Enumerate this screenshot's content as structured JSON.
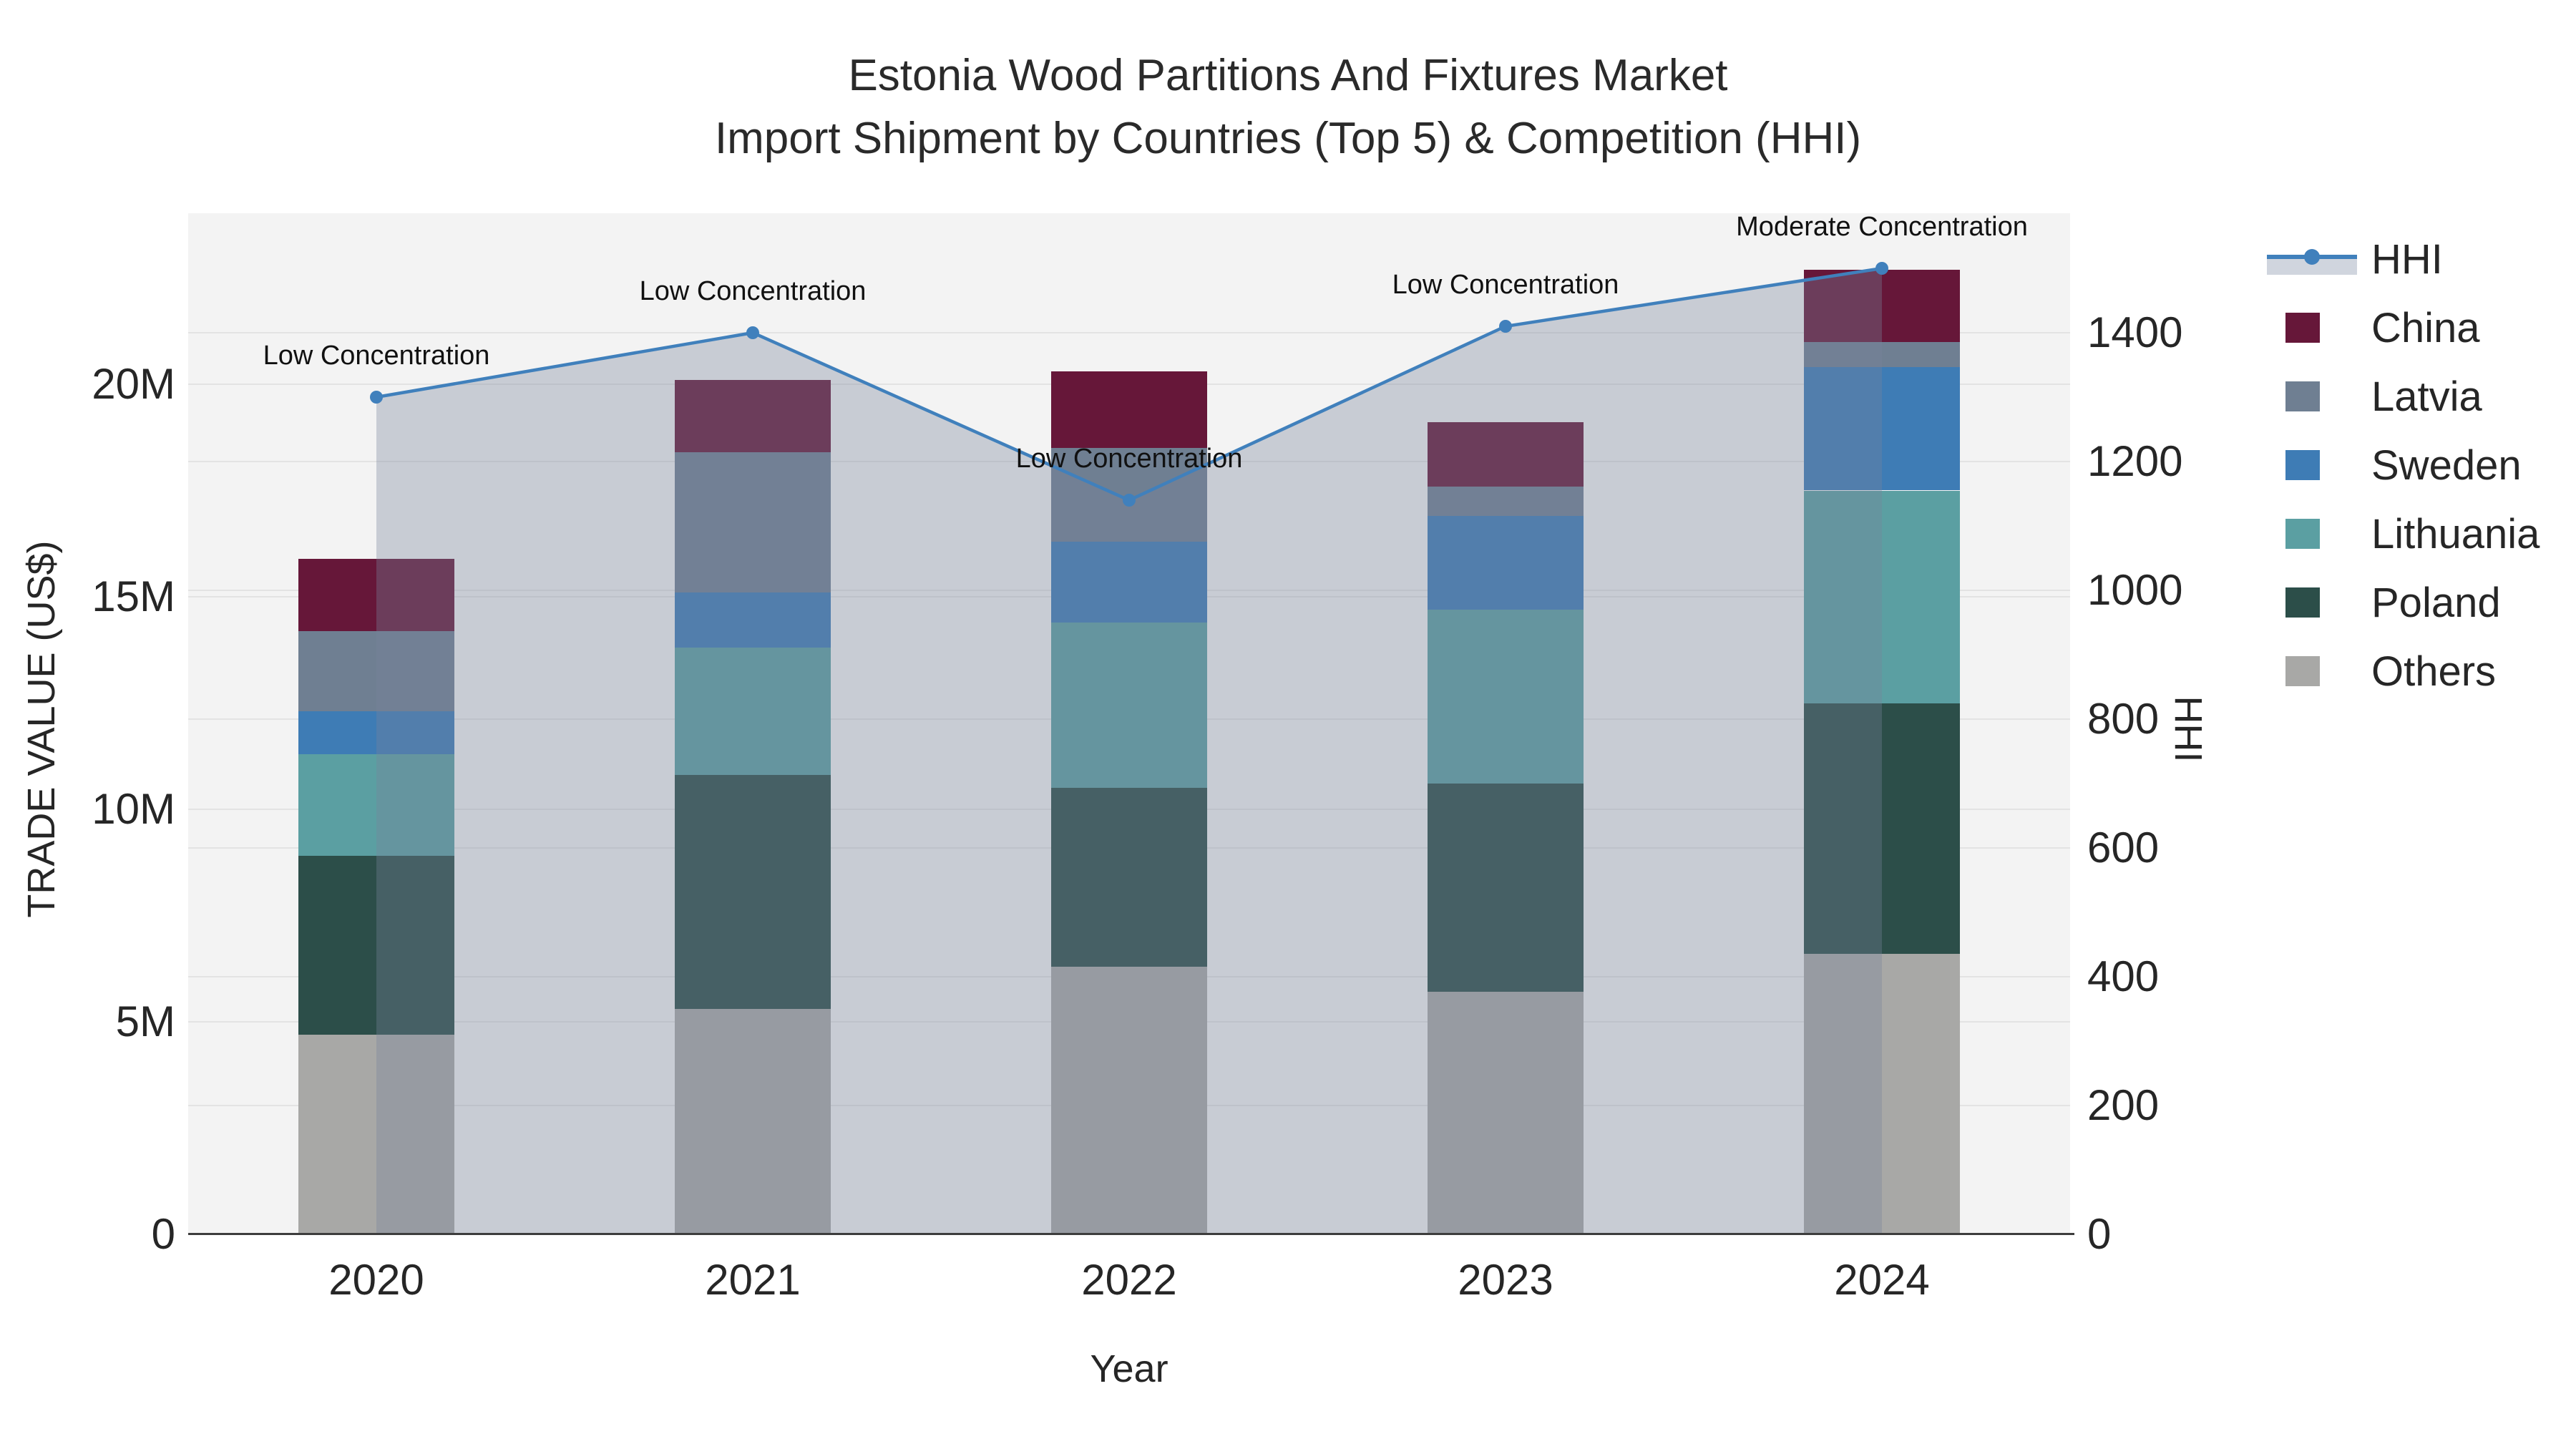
{
  "title": {
    "line1": "Estonia Wood Partitions And Fixtures Market",
    "line2": "Import Shipment by Countries (Top 5) & Competition (HHI)"
  },
  "legend": {
    "items": [
      {
        "label": "HHI",
        "glyph": "line",
        "color": "#4080bc"
      },
      {
        "label": "China",
        "glyph": "swatch",
        "color": "#661739"
      },
      {
        "label": "Latvia",
        "glyph": "swatch",
        "color": "#6f7f92"
      },
      {
        "label": "Sweden",
        "glyph": "swatch",
        "color": "#3e7cb5"
      },
      {
        "label": "Lithuania",
        "glyph": "swatch",
        "color": "#5b9fa2"
      },
      {
        "label": "Poland",
        "glyph": "swatch",
        "color": "#2c4e49"
      },
      {
        "label": "Others",
        "glyph": "swatch",
        "color": "#a8a8a6"
      }
    ]
  },
  "chart_data": {
    "type": "bar-stacked+line",
    "title": "Estonia Wood Partitions And Fixtures Market — Import Shipment by Countries (Top 5) & Competition (HHI)",
    "categories": [
      "2020",
      "2021",
      "2022",
      "2023",
      "2024"
    ],
    "value_unit": "Million US$",
    "series": [
      {
        "name": "Others",
        "color": "#a8a8a6",
        "values": [
          4.7,
          5.3,
          6.3,
          5.7,
          6.6
        ]
      },
      {
        "name": "Poland",
        "color": "#2c4e49",
        "values": [
          4.2,
          5.5,
          4.2,
          4.9,
          5.9
        ]
      },
      {
        "name": "Lithuania",
        "color": "#5b9fa2",
        "values": [
          2.4,
          3.0,
          3.9,
          4.1,
          5.0
        ]
      },
      {
        "name": "Sweden",
        "color": "#3e7cb5",
        "values": [
          1.0,
          1.3,
          1.9,
          2.2,
          2.9
        ]
      },
      {
        "name": "Latvia",
        "color": "#6f7f92",
        "values": [
          1.9,
          3.3,
          2.2,
          0.7,
          0.6
        ]
      },
      {
        "name": "China",
        "color": "#661739",
        "values": [
          1.7,
          1.7,
          1.8,
          1.5,
          1.7
        ]
      }
    ],
    "stack_totals": [
      15.9,
      20.1,
      20.3,
      19.1,
      22.7
    ],
    "line": {
      "name": "HHI",
      "axis": "right",
      "color": "#4080bc",
      "fill_color": "rgba(120,132,155,0.35)",
      "values": [
        1300,
        1400,
        1140,
        1410,
        1500
      ]
    },
    "annotations": [
      {
        "category": "2020",
        "text": "Low Concentration"
      },
      {
        "category": "2021",
        "text": "Low Concentration"
      },
      {
        "category": "2022",
        "text": "Low Concentration"
      },
      {
        "category": "2023",
        "text": "Low Concentration"
      },
      {
        "category": "2024",
        "text": "Moderate Concentration"
      }
    ],
    "x": {
      "label": "Year"
    },
    "y_left": {
      "label": "TRADE VALUE (US$)",
      "tick_values": [
        0,
        5,
        10,
        15,
        20
      ],
      "tick_labels": [
        "0",
        "5M",
        "10M",
        "15M",
        "20M"
      ],
      "ylim": [
        0,
        24
      ]
    },
    "y_right": {
      "label": "HHI",
      "tick_values": [
        0,
        200,
        400,
        600,
        800,
        1000,
        1200,
        1400
      ],
      "tick_labels": [
        "0",
        "200",
        "400",
        "600",
        "800",
        "1000",
        "1200",
        "1400"
      ],
      "ylim": [
        0,
        1586
      ],
      "grid": true
    },
    "legend_position": "right"
  }
}
